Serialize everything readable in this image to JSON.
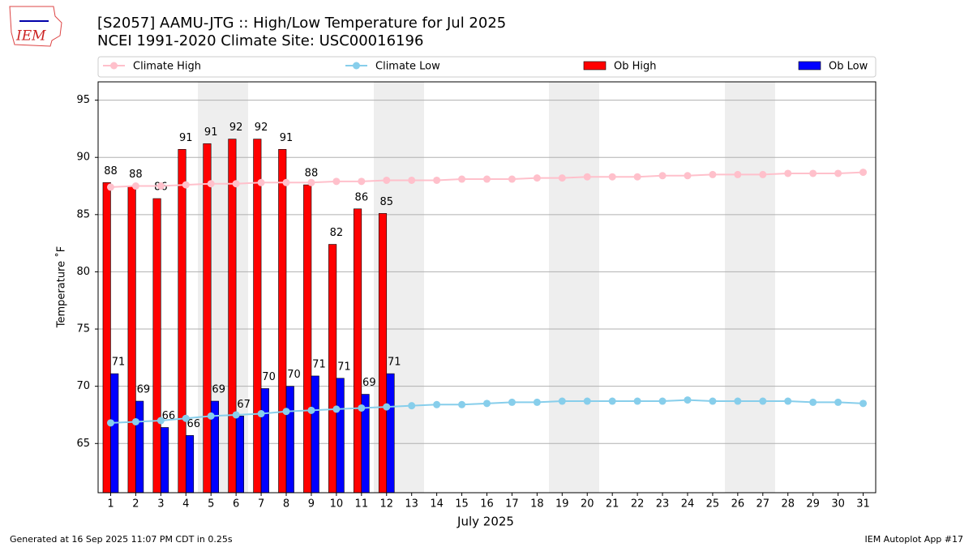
{
  "logo_text": "IEM",
  "footer_left": "Generated at 16 Sep 2025 11:07 PM CDT in 0.25s",
  "footer_right": "IEM Autoplot App #17",
  "chart_data": {
    "type": "bar",
    "title": "[S2057] AAMU-JTG :: High/Low Temperature for Jul 2025",
    "subtitle": "NCEI 1991-2020 Climate Site: USC00016196",
    "x_label": "July 2025",
    "y_label": "Temperature ˚F",
    "categories": [
      "1",
      "2",
      "3",
      "4",
      "5",
      "6",
      "7",
      "8",
      "9",
      "10",
      "11",
      "12",
      "13",
      "14",
      "15",
      "16",
      "17",
      "18",
      "19",
      "20",
      "21",
      "22",
      "23",
      "24",
      "25",
      "26",
      "27",
      "28",
      "29",
      "30",
      "31"
    ],
    "ylim": [
      60.7,
      96.6
    ],
    "yticks": [
      65,
      70,
      75,
      80,
      85,
      90,
      95
    ],
    "grid": true,
    "series": [
      {
        "name": "Climate High",
        "kind": "line",
        "color": "#ffc0cb",
        "values": [
          87.4,
          87.5,
          87.5,
          87.6,
          87.7,
          87.7,
          87.8,
          87.8,
          87.8,
          87.9,
          87.9,
          88.0,
          88.0,
          88.0,
          88.1,
          88.1,
          88.1,
          88.2,
          88.2,
          88.3,
          88.3,
          88.3,
          88.4,
          88.4,
          88.5,
          88.5,
          88.5,
          88.6,
          88.6,
          88.6,
          88.7
        ]
      },
      {
        "name": "Climate Low",
        "kind": "line",
        "color": "#87ceeb",
        "values": [
          66.8,
          66.9,
          67.0,
          67.2,
          67.4,
          67.5,
          67.6,
          67.8,
          67.9,
          68.0,
          68.1,
          68.2,
          68.3,
          68.4,
          68.4,
          68.5,
          68.6,
          68.6,
          68.7,
          68.7,
          68.7,
          68.7,
          68.7,
          68.8,
          68.7,
          68.7,
          68.7,
          68.7,
          68.6,
          68.6,
          68.5
        ]
      },
      {
        "name": "Ob High",
        "kind": "bar",
        "color": "#ff0000",
        "values": [
          87.8,
          87.5,
          86.4,
          90.7,
          91.2,
          91.6,
          91.6,
          90.7,
          87.6,
          82.4,
          85.5,
          85.1,
          null,
          null,
          null,
          null,
          null,
          null,
          null,
          null,
          null,
          null,
          null,
          null,
          null,
          null,
          null,
          null,
          null,
          null,
          null
        ],
        "value_labels": [
          "88",
          "88",
          "86",
          "91",
          "91",
          "92",
          "92",
          "91",
          "88",
          "82",
          "86",
          "85",
          null,
          null,
          null,
          null,
          null,
          null,
          null,
          null,
          null,
          null,
          null,
          null,
          null,
          null,
          null,
          null,
          null,
          null,
          null
        ]
      },
      {
        "name": "Ob Low",
        "kind": "bar",
        "color": "#0000ff",
        "values": [
          71.1,
          68.7,
          66.4,
          65.7,
          68.7,
          67.4,
          69.8,
          70.0,
          70.9,
          70.7,
          69.3,
          71.1,
          null,
          null,
          null,
          null,
          null,
          null,
          null,
          null,
          null,
          null,
          null,
          null,
          null,
          null,
          null,
          null,
          null,
          null,
          null
        ],
        "value_labels": [
          "71",
          "69",
          "66",
          "66",
          "69",
          "67",
          "70",
          "70",
          "71",
          "71",
          "69",
          "71",
          null,
          null,
          null,
          null,
          null,
          null,
          null,
          null,
          null,
          null,
          null,
          null,
          null,
          null,
          null,
          null,
          null,
          null,
          null
        ]
      }
    ]
  }
}
